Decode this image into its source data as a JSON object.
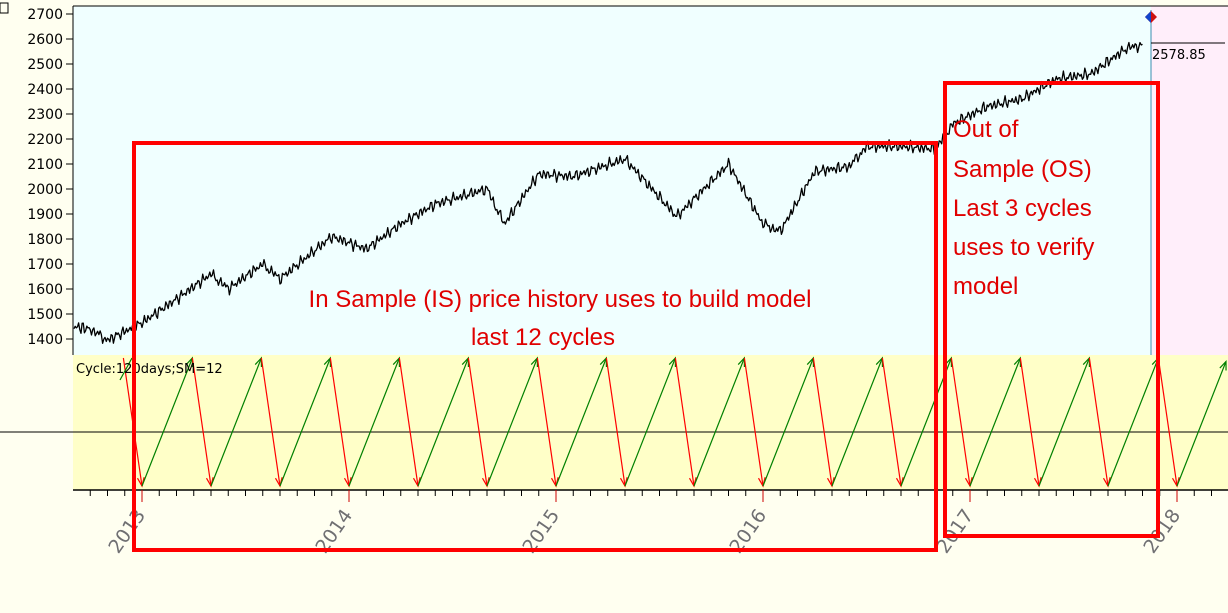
{
  "chart_data": {
    "type": "line",
    "title": "",
    "xlabel": "",
    "ylabel": "",
    "ylim": [
      1350,
      2700
    ],
    "y_ticks": [
      "2700",
      "2600",
      "2500",
      "2400",
      "2300",
      "2200",
      "2100",
      "2000",
      "1900",
      "1800",
      "1700",
      "1600",
      "1500",
      "1400"
    ],
    "x_ticks": [
      "2013",
      "2014",
      "2015",
      "2016",
      "2017",
      "2018"
    ],
    "last_value_label": "2578.85",
    "series": [
      {
        "x": [
          "2012-09",
          "2012-10",
          "2012-11",
          "2013-01",
          "2013-03",
          "2013-05",
          "2013-06",
          "2013-08",
          "2013-09",
          "2013-12",
          "2014-02",
          "2014-04",
          "2014-06",
          "2014-09",
          "2014-10",
          "2014-12",
          "2015-02",
          "2015-05",
          "2015-08",
          "2015-11",
          "2016-01",
          "2016-02",
          "2016-04",
          "2016-06",
          "2016-07",
          "2016-09",
          "2016-11",
          "2016-12",
          "2017-02",
          "2017-04",
          "2017-06",
          "2017-08",
          "2017-10",
          "2017-11"
        ],
        "values": [
          1450,
          1440,
          1395,
          1465,
          1560,
          1660,
          1600,
          1700,
          1640,
          1810,
          1760,
          1860,
          1940,
          2000,
          1860,
          2060,
          2050,
          2120,
          1890,
          2100,
          1860,
          1830,
          2070,
          2090,
          2170,
          2170,
          2160,
          2260,
          2330,
          2360,
          2440,
          2460,
          2560,
          2578.85
        ]
      }
    ]
  },
  "indicator": {
    "label": "Cycle:120days;SM=12",
    "lows": [
      "2013-01",
      "2013-05",
      "2013-09",
      "2014-01",
      "2014-05",
      "2014-09",
      "2015-01",
      "2015-05",
      "2015-09",
      "2016-01",
      "2016-05",
      "2016-09",
      "2017-01",
      "2017-05",
      "2017-09",
      "2018-01"
    ]
  },
  "annotations": {
    "in_sample_line1": "In Sample (IS) price history uses to build model",
    "in_sample_line2": "last 12 cycles",
    "out_sample_lines": [
      "Out of",
      "Sample (OS)",
      "Last 3 cycles",
      "uses to verify",
      "model"
    ]
  },
  "colors": {
    "price": "#000000",
    "up_arrow": "#008000",
    "down_arrow": "#ff0000",
    "box": "#ff0000",
    "main_bg": "#f0ffff",
    "indicator_bg": "#ffffc8"
  }
}
